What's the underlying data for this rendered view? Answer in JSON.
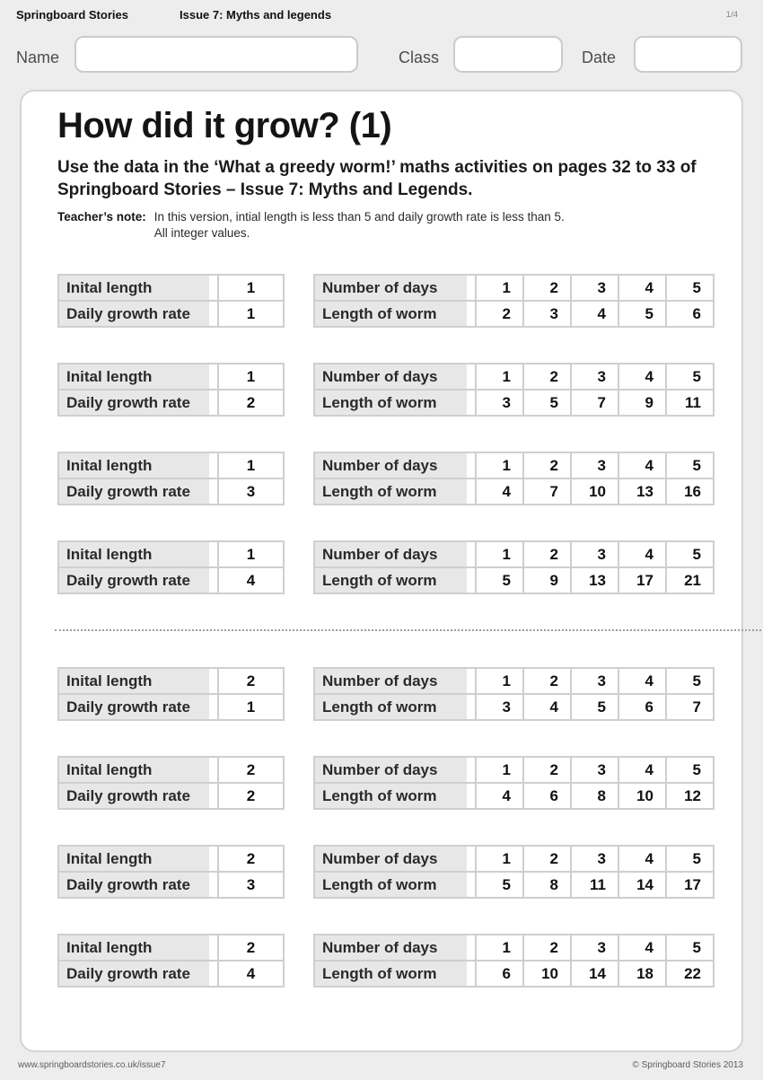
{
  "header": {
    "brand": "Springboard Stories",
    "issue": "Issue 7: Myths and legends",
    "page": "1/4"
  },
  "id_fields": {
    "name_label": "Name",
    "class_label": "Class",
    "date_label": "Date",
    "name_value": "",
    "class_value": "",
    "date_value": ""
  },
  "worksheet": {
    "title": "How did it grow? (1)",
    "intro": "Use the data in the ‘What a greedy worm!’ maths activities on pages 32 to 33 of Springboard Stories – Issue 7: Myths and Legends.",
    "teachers_note_label": "Teacher’s note:",
    "teachers_note_line1": "In this version, intial length is less than 5 and daily growth rate is less than 5.",
    "teachers_note_line2": "All integer values."
  },
  "table_labels": {
    "initial_length": "Inital length",
    "daily_growth_rate": "Daily growth rate",
    "number_of_days": "Number of days",
    "length_of_worm": "Length of worm"
  },
  "sets": [
    {
      "initial_length": 1,
      "daily_growth_rate": 1,
      "days": [
        1,
        2,
        3,
        4,
        5
      ],
      "lengths": [
        2,
        3,
        4,
        5,
        6
      ]
    },
    {
      "initial_length": 1,
      "daily_growth_rate": 2,
      "days": [
        1,
        2,
        3,
        4,
        5
      ],
      "lengths": [
        3,
        5,
        7,
        9,
        11
      ]
    },
    {
      "initial_length": 1,
      "daily_growth_rate": 3,
      "days": [
        1,
        2,
        3,
        4,
        5
      ],
      "lengths": [
        4,
        7,
        10,
        13,
        16
      ]
    },
    {
      "initial_length": 1,
      "daily_growth_rate": 4,
      "days": [
        1,
        2,
        3,
        4,
        5
      ],
      "lengths": [
        5,
        9,
        13,
        17,
        21
      ]
    },
    {
      "initial_length": 2,
      "daily_growth_rate": 1,
      "days": [
        1,
        2,
        3,
        4,
        5
      ],
      "lengths": [
        3,
        4,
        5,
        6,
        7
      ]
    },
    {
      "initial_length": 2,
      "daily_growth_rate": 2,
      "days": [
        1,
        2,
        3,
        4,
        5
      ],
      "lengths": [
        4,
        6,
        8,
        10,
        12
      ]
    },
    {
      "initial_length": 2,
      "daily_growth_rate": 3,
      "days": [
        1,
        2,
        3,
        4,
        5
      ],
      "lengths": [
        5,
        8,
        11,
        14,
        17
      ]
    },
    {
      "initial_length": 2,
      "daily_growth_rate": 4,
      "days": [
        1,
        2,
        3,
        4,
        5
      ],
      "lengths": [
        6,
        10,
        14,
        18,
        22
      ]
    }
  ],
  "footer": {
    "url": "www.springboardstories.co.uk/issue7",
    "copyright": "© Springboard Stories 2013"
  }
}
